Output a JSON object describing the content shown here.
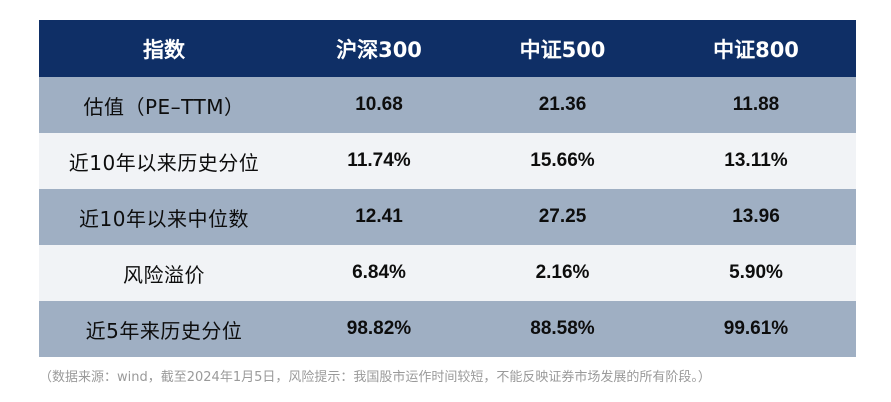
{
  "table": {
    "headers": [
      "指数",
      "沪深300",
      "中证500",
      "中证800"
    ],
    "rows": [
      {
        "label": "估值（PE–TTM）",
        "values": [
          "10.68",
          "21.36",
          "11.88"
        ]
      },
      {
        "label": "近10年以来历史分位",
        "values": [
          "11.74%",
          "15.66%",
          "13.11%"
        ]
      },
      {
        "label": "近10年以来中位数",
        "values": [
          "12.41",
          "27.25",
          "13.96"
        ]
      },
      {
        "label": "风险溢价",
        "values": [
          "6.84%",
          "2.16%",
          "5.90%"
        ]
      },
      {
        "label": "近5年来历史分位",
        "values": [
          "98.82%",
          "88.58%",
          "99.61%"
        ]
      }
    ]
  },
  "source_note": "（数据来源：wind，截至2024年1月5日，风险提示：我国股市运作时间较短，不能反映证券市场发展的所有阶段。）",
  "colors": {
    "header_bg": "#0f2f66",
    "row_dark": "#9fafc3",
    "row_light": "#f1f3f6"
  }
}
